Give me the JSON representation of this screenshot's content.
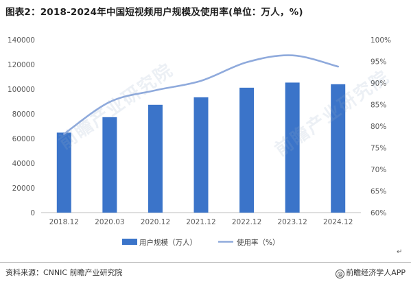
{
  "title": "图表2：2018-2024年中国短视频用户规模及使用率(单位：万人，%)",
  "source": "资料来源：CNNIC 前瞻产业研究院",
  "brand": "前瞻经济学人APP",
  "watermark": "前瞻产业研究院",
  "colors": {
    "bar": "#3b74c9",
    "line": "#8faadc",
    "axis": "#bfbfbf",
    "tick": "#595959"
  },
  "chart_data": {
    "type": "bar",
    "categories": [
      "2018.12",
      "2020.03",
      "2020.12",
      "2021.12",
      "2022.12",
      "2023.12",
      "2024.12"
    ],
    "series": [
      {
        "name": "用户规模（万人）",
        "type": "bar",
        "axis": "left",
        "values": [
          64798,
          77325,
          87335,
          93415,
          101185,
          105330,
          104000
        ]
      },
      {
        "name": "使用率（%）",
        "type": "line",
        "axis": "right",
        "smooth": true,
        "values": [
          78.2,
          85.6,
          88.3,
          90.5,
          94.8,
          96.4,
          93.8
        ]
      }
    ],
    "ylim_left": [
      0,
      140000
    ],
    "yticks_left": [
      "0",
      "20000",
      "40000",
      "60000",
      "80000",
      "100000",
      "120000",
      "140000"
    ],
    "ylim_right": [
      60,
      100
    ],
    "yticks_right": [
      "60%",
      "65%",
      "70%",
      "75%",
      "80%",
      "85%",
      "90%",
      "95%",
      "100%"
    ],
    "grid": false,
    "legend_position": "bottom"
  }
}
